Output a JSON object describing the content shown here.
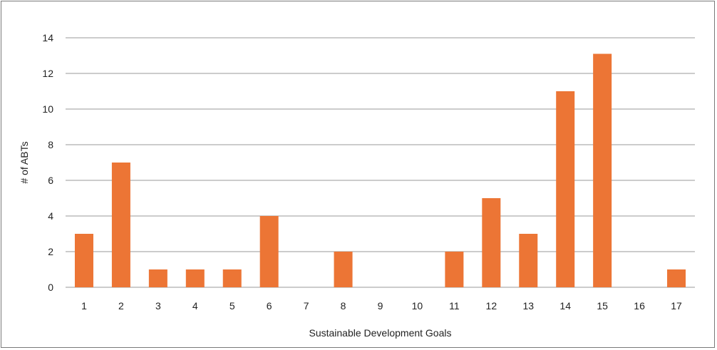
{
  "chart_data": {
    "type": "bar",
    "title": "",
    "xlabel": "Sustainable Development Goals",
    "ylabel": "# of ABTs",
    "categories": [
      "1",
      "2",
      "3",
      "4",
      "5",
      "6",
      "7",
      "8",
      "9",
      "10",
      "11",
      "12",
      "13",
      "14",
      "15",
      "16",
      "17"
    ],
    "values": [
      3,
      7,
      1,
      1,
      1,
      4,
      0,
      2,
      0,
      0,
      2,
      5,
      3,
      11,
      13.1,
      0,
      1
    ],
    "ylim": [
      0,
      14
    ],
    "yticks": [
      0,
      2,
      4,
      6,
      8,
      10,
      12,
      14
    ],
    "grid": true,
    "legend": "none",
    "colors": {
      "bar": "#ec7535",
      "grid": "#9a9a9a",
      "text": "#222222"
    }
  }
}
